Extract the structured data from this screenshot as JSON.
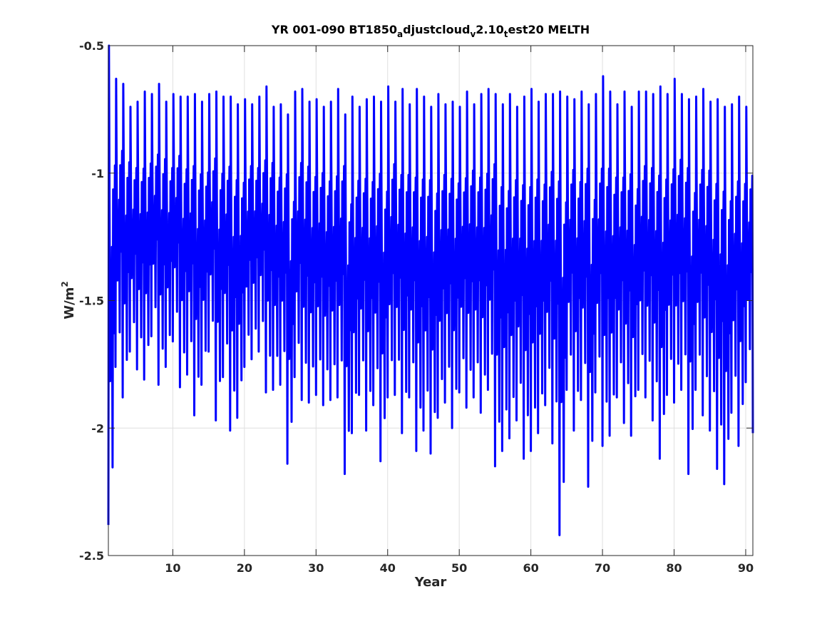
{
  "chart_data": {
    "type": "line",
    "title": {
      "main": "YR 001-090 BT1850",
      "s1": "a",
      "mid1": "djustcloud",
      "s2": "v",
      "mid2": "2.10",
      "s3": "t",
      "tail": "est20 MELTH"
    },
    "xlabel": "Year",
    "ylabel": {
      "base": "W/m",
      "sup": "2"
    },
    "xlim": [
      1,
      91
    ],
    "ylim": [
      -2.5,
      -0.5
    ],
    "xticks": [
      10,
      20,
      30,
      40,
      50,
      60,
      70,
      80,
      90
    ],
    "yticks": [
      -0.5,
      -1,
      -1.5,
      -2,
      -2.5
    ],
    "ytick_labels": [
      "-0.5",
      "-1",
      "-1.5",
      "-2",
      "-2.5"
    ],
    "grid": true,
    "series": [
      {
        "color": "#0000ff",
        "samples_per_year": 12,
        "annual_min": [
          -2.38,
          -1.76,
          -1.88,
          -1.7,
          -1.77,
          -1.81,
          -1.64,
          -1.83,
          -1.76,
          -1.66,
          -1.84,
          -1.79,
          -1.95,
          -1.83,
          -1.7,
          -1.97,
          -1.8,
          -2.01,
          -1.96,
          -1.76,
          -1.73,
          -1.7,
          -1.86,
          -1.85,
          -1.83,
          -2.14,
          -1.8,
          -1.89,
          -1.9,
          -1.87,
          -1.91,
          -1.89,
          -1.88,
          -2.18,
          -2.02,
          -1.87,
          -2.01,
          -1.91,
          -2.13,
          -1.88,
          -1.87,
          -2.02,
          -1.88,
          -2.09,
          -2.01,
          -2.1,
          -1.96,
          -1.9,
          -2.0,
          -1.86,
          -1.92,
          -1.88,
          -1.94,
          -1.85,
          -2.15,
          -2.09,
          -2.04,
          -1.97,
          -2.12,
          -2.09,
          -2.02,
          -1.91,
          -2.06,
          -2.42,
          -1.85,
          -2.01,
          -1.89,
          -2.23,
          -1.86,
          -2.07,
          -2.03,
          -1.88,
          -1.98,
          -2.03,
          -1.85,
          -1.88,
          -1.97,
          -2.12,
          -1.87,
          -1.9,
          -1.85,
          -2.18,
          -1.85,
          -1.95,
          -2.01,
          -2.16,
          -2.22,
          -1.94,
          -2.07,
          -1.82,
          -2.02
        ],
        "annual_max": [
          -0.5,
          -0.63,
          -0.65,
          -0.74,
          -0.72,
          -0.68,
          -0.69,
          -0.65,
          -0.72,
          -0.69,
          -0.7,
          -0.7,
          -0.69,
          -0.72,
          -0.69,
          -0.68,
          -0.7,
          -0.7,
          -0.73,
          -0.71,
          -0.73,
          -0.7,
          -0.66,
          -0.74,
          -0.73,
          -0.77,
          -0.68,
          -0.67,
          -0.72,
          -0.71,
          -0.74,
          -0.72,
          -0.67,
          -0.77,
          -0.7,
          -0.74,
          -0.71,
          -0.7,
          -0.72,
          -0.66,
          -0.72,
          -0.67,
          -0.73,
          -0.67,
          -0.7,
          -0.74,
          -0.69,
          -0.73,
          -0.72,
          -0.74,
          -0.68,
          -0.73,
          -0.69,
          -0.67,
          -0.69,
          -0.73,
          -0.69,
          -0.74,
          -0.7,
          -0.67,
          -0.72,
          -0.69,
          -0.69,
          -0.68,
          -0.7,
          -0.71,
          -0.68,
          -0.73,
          -0.69,
          -0.62,
          -0.68,
          -0.73,
          -0.68,
          -0.74,
          -0.68,
          -0.68,
          -0.69,
          -0.66,
          -0.69,
          -0.63,
          -0.69,
          -0.71,
          -0.7,
          -0.67,
          -0.72,
          -0.71,
          -0.74,
          -0.73,
          -0.7,
          -0.74,
          -0.8
        ]
      }
    ]
  }
}
